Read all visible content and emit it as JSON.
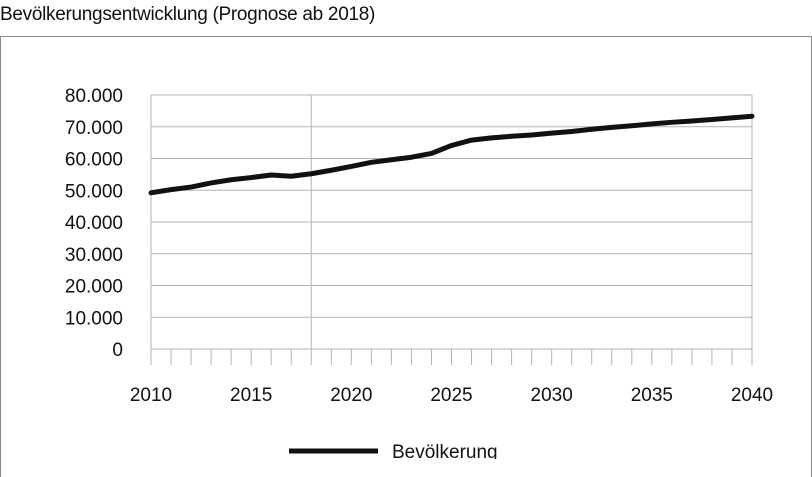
{
  "chart_data": {
    "type": "line",
    "title": "Bevölkerungsentwicklung (Prognose ab 2018)",
    "xlabel": "",
    "ylabel": "",
    "xlim": [
      2010,
      2040
    ],
    "ylim": [
      0,
      80000
    ],
    "x_ticks": [
      "2010",
      "2015",
      "2020",
      "2025",
      "2030",
      "2035",
      "2040"
    ],
    "y_ticks": [
      "0",
      "10.000",
      "20.000",
      "30.000",
      "40.000",
      "50.000",
      "60.000",
      "70.000",
      "80.000"
    ],
    "grid": "horizontal",
    "marker_line_x": 2018,
    "legend_position": "bottom",
    "series": [
      {
        "name": "Bevölkerung",
        "color": "#111111",
        "x": [
          2010,
          2011,
          2012,
          2013,
          2014,
          2015,
          2016,
          2017,
          2018,
          2019,
          2020,
          2021,
          2022,
          2023,
          2024,
          2025,
          2026,
          2027,
          2028,
          2029,
          2030,
          2031,
          2032,
          2033,
          2034,
          2035,
          2036,
          2037,
          2038,
          2039,
          2040
        ],
        "values": [
          49200,
          50200,
          51000,
          52300,
          53300,
          54000,
          54800,
          54400,
          55200,
          56300,
          57500,
          58800,
          59600,
          60400,
          61600,
          64100,
          65800,
          66500,
          67000,
          67400,
          68000,
          68500,
          69200,
          69800,
          70300,
          70900,
          71400,
          71800,
          72300,
          72800,
          73300
        ]
      }
    ]
  }
}
